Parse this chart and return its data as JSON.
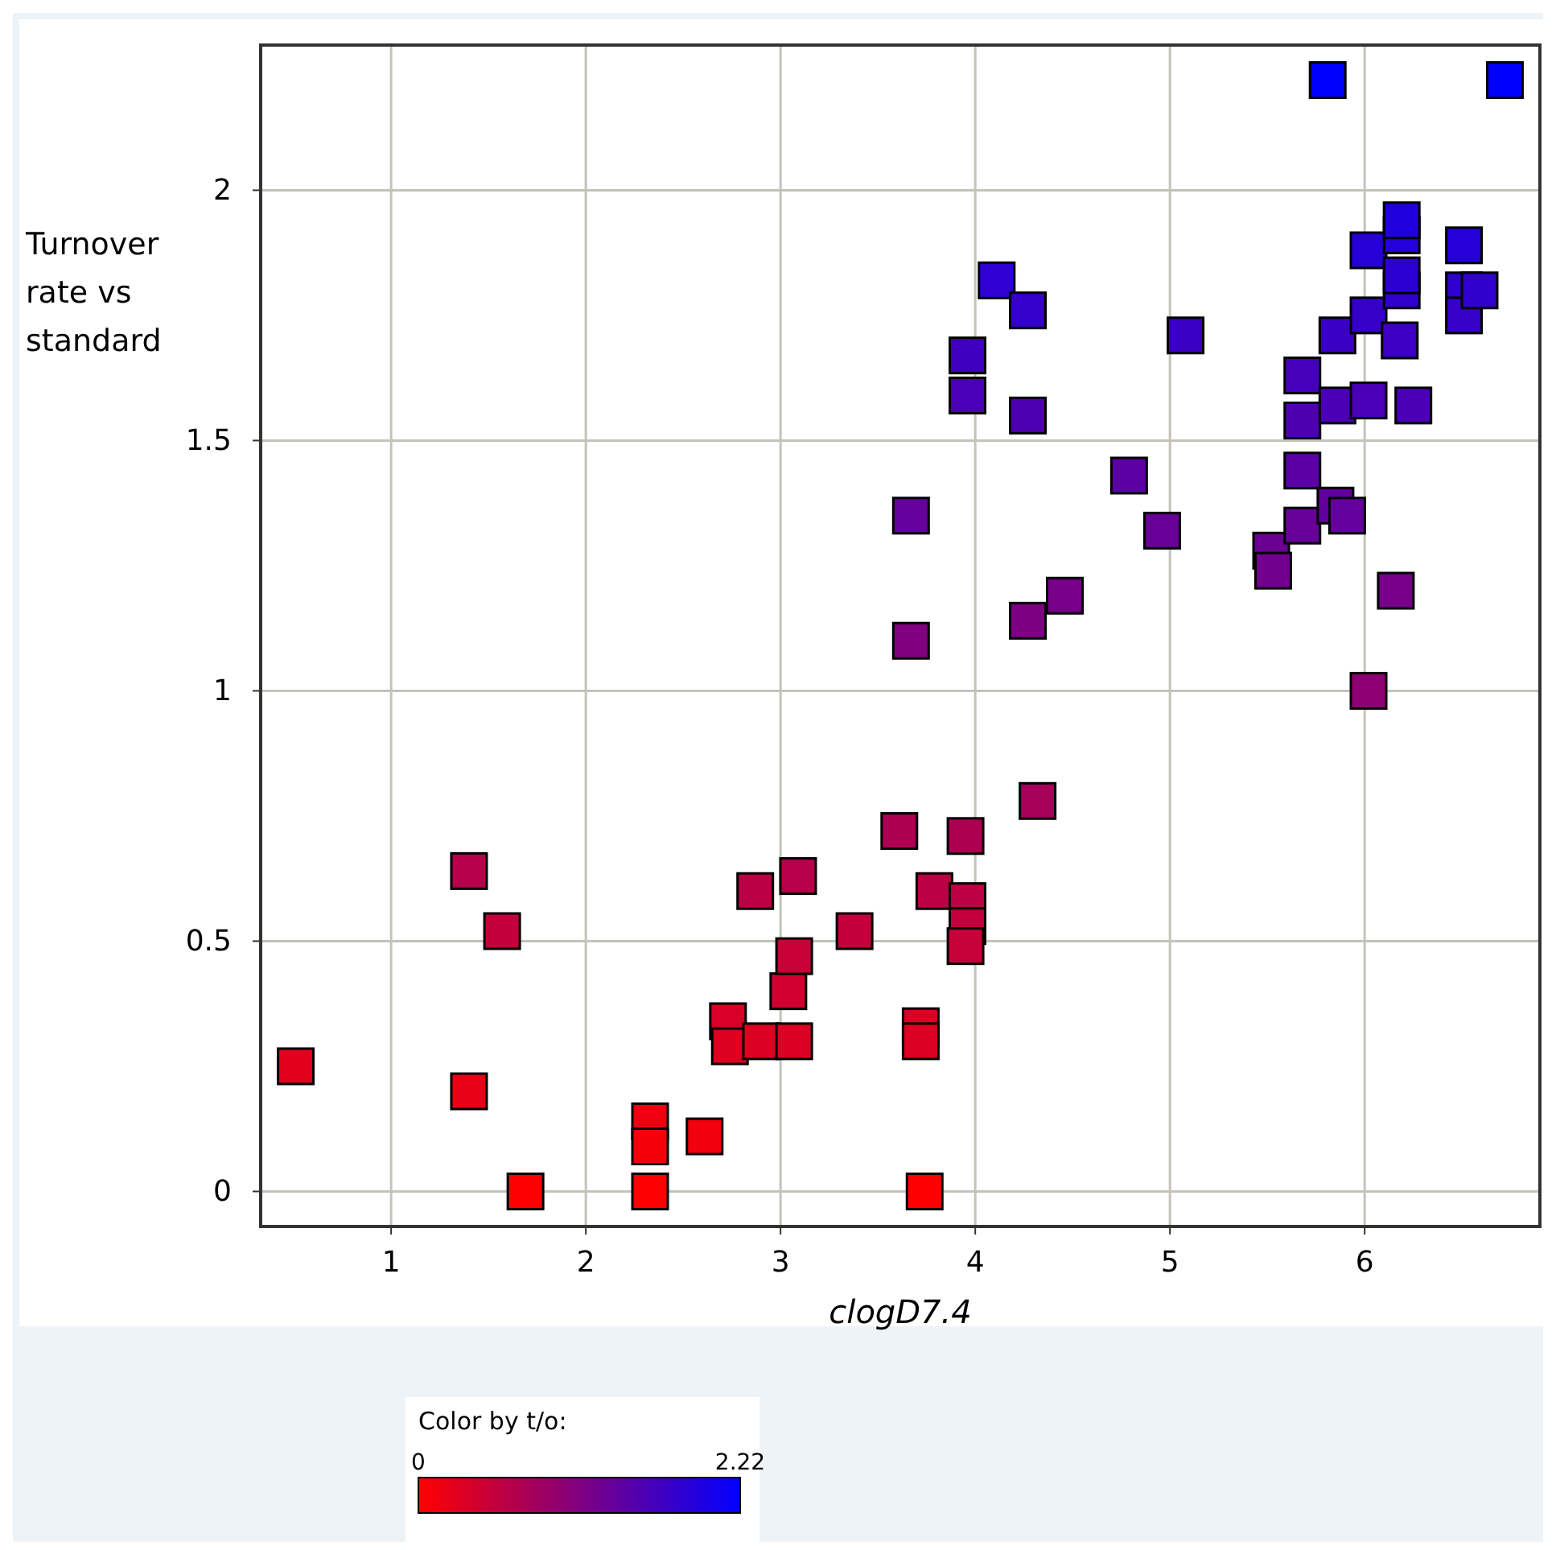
{
  "chart_data": {
    "type": "scatter",
    "xlabel": "clogD7.4",
    "ylabel": "Turnover rate vs standard",
    "clabel": "Color by t/o:",
    "x": [
      0.51,
      1.4,
      1.57,
      1.4,
      1.69,
      2.33,
      2.33,
      2.33,
      2.61,
      2.73,
      2.74,
      2.87,
      2.9,
      3.07,
      3.04,
      3.07,
      3.09,
      3.38,
      3.61,
      3.72,
      3.72,
      3.74,
      3.79,
      3.95,
      3.96,
      3.96,
      3.95,
      4.32,
      5.81,
      6.72,
      4.11,
      4.27,
      3.96,
      3.96,
      4.27,
      5.08,
      4.79,
      4.96,
      3.67,
      3.67,
      4.27,
      4.46,
      6.02,
      6.16,
      5.52,
      5.53,
      5.68,
      5.68,
      5.85,
      5.91,
      5.68,
      5.68,
      5.86,
      6.02,
      6.25,
      5.86,
      6.02,
      6.02,
      6.18,
      6.19,
      6.19,
      6.19,
      6.19,
      6.51,
      6.51,
      6.51,
      6.59
    ],
    "values": [
      0.25,
      0.64,
      0.52,
      0.2,
      0.0,
      0.14,
      0.09,
      0.0,
      0.11,
      0.34,
      0.29,
      0.6,
      0.3,
      0.3,
      0.4,
      0.47,
      0.63,
      0.52,
      0.72,
      0.33,
      0.3,
      0.0,
      0.6,
      0.71,
      0.58,
      0.53,
      0.49,
      0.78,
      2.22,
      2.22,
      1.82,
      1.76,
      1.67,
      1.59,
      1.55,
      1.71,
      1.43,
      1.32,
      1.35,
      1.1,
      1.14,
      1.19,
      1.0,
      1.2,
      1.28,
      1.24,
      1.33,
      1.44,
      1.37,
      1.35,
      1.54,
      1.63,
      1.57,
      1.58,
      1.57,
      1.71,
      1.75,
      1.88,
      1.7,
      1.8,
      1.83,
      1.91,
      1.94,
      1.89,
      1.8,
      1.75,
      1.8
    ],
    "cvalues": [
      0.25,
      0.64,
      0.52,
      0.2,
      0.0,
      0.14,
      0.09,
      0.0,
      0.11,
      0.34,
      0.29,
      0.6,
      0.3,
      0.3,
      0.4,
      0.47,
      0.63,
      0.52,
      0.72,
      0.33,
      0.3,
      0.0,
      0.6,
      0.71,
      0.58,
      0.53,
      0.49,
      0.78,
      2.22,
      2.22,
      1.82,
      1.76,
      1.67,
      1.59,
      1.55,
      1.71,
      1.43,
      1.32,
      1.35,
      1.1,
      1.14,
      1.19,
      1.0,
      1.2,
      1.28,
      1.24,
      1.33,
      1.44,
      1.37,
      1.35,
      1.54,
      1.63,
      1.57,
      1.58,
      1.57,
      1.71,
      1.75,
      1.88,
      1.7,
      1.8,
      1.83,
      1.91,
      1.94,
      1.89,
      1.8,
      1.75,
      1.8
    ],
    "clim": [
      0,
      2.22
    ],
    "cticks": [
      0,
      2.22
    ],
    "xlim": [
      0.33,
      6.9
    ],
    "ylim": [
      -0.07,
      2.29
    ],
    "xticks": [
      1,
      2,
      3,
      4,
      5,
      6
    ],
    "yticks": [
      0,
      0.5,
      1,
      1.5,
      2
    ],
    "grid": true,
    "marker": "square"
  }
}
